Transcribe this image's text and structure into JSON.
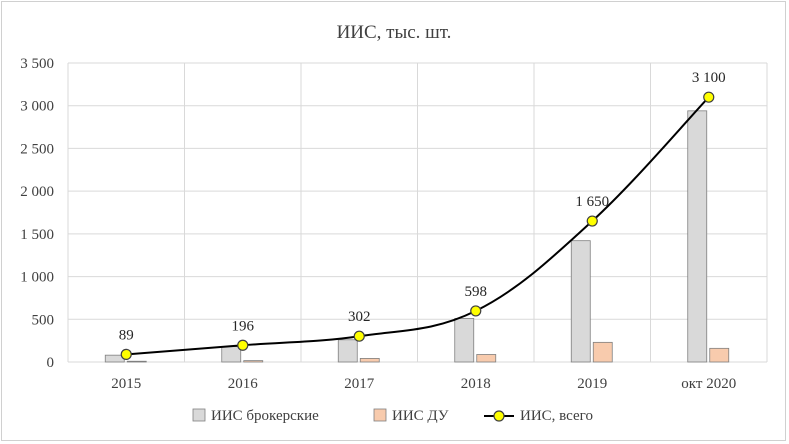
{
  "chart_data": {
    "type": "bar",
    "title": "ИИС, тыс. шт.",
    "categories": [
      "2015",
      "2016",
      "2017",
      "2018",
      "2019",
      "окт 2020"
    ],
    "ylim": [
      0,
      3500
    ],
    "yticks": [
      0,
      500,
      1000,
      1500,
      2000,
      2500,
      3000,
      3500
    ],
    "ytick_labels": [
      "0",
      "500",
      "1 000",
      "1 500",
      "2 000",
      "2 500",
      "3 000",
      "3 500"
    ],
    "grid": true,
    "legend_position": "bottom",
    "series": [
      {
        "name": "ИИС брокерские",
        "type": "bar",
        "color": "#d9d9d9",
        "values": [
          80,
          180,
          260,
          510,
          1420,
          2940
        ]
      },
      {
        "name": "ИИС ДУ",
        "type": "bar",
        "color": "#f8cbad",
        "values": [
          9,
          16,
          42,
          88,
          230,
          160
        ]
      },
      {
        "name": "ИИС, всего",
        "type": "line",
        "color": "#000000",
        "marker_color": "#ffff00",
        "values": [
          89,
          196,
          302,
          598,
          1650,
          3100
        ],
        "data_labels": [
          "89",
          "196",
          "302",
          "598",
          "1 650",
          "3 100"
        ]
      }
    ]
  }
}
